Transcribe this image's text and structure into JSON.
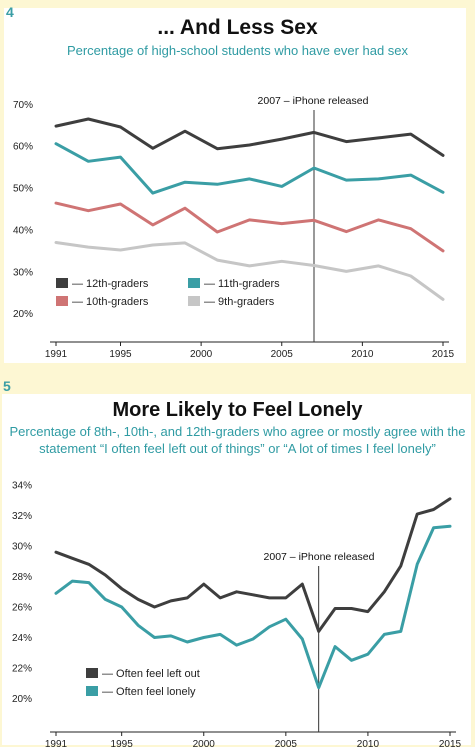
{
  "panels": [
    {
      "number": "4",
      "title": "... And Less Sex",
      "subtitle": "Percentage of high-school students who have ever had sex"
    },
    {
      "number": "5",
      "title": "More Likely to Feel Lonely",
      "subtitle": "Percentage of 8th-, 10th-, and 12th-graders who agree or mostly agree with the statement “I often feel left out of things” or “A lot of times I feel lonely”"
    }
  ],
  "colors": {
    "background": "#fdf7d3",
    "accent": "#3a9ea5",
    "dark": "#3e3e3e",
    "teal": "#3a9ea5",
    "salmon": "#cf7474",
    "gray": "#c6c6c6"
  },
  "chart_data": [
    {
      "type": "line",
      "title": "... And Less Sex",
      "subtitle": "Percentage of high-school students who have ever had sex",
      "xlim": [
        1991,
        2015
      ],
      "ylim": [
        18,
        72
      ],
      "xticks": [
        "1991",
        "1995",
        "2000",
        "2005",
        "2010",
        "2015"
      ],
      "yticks": [
        "70%",
        "60%",
        "50%",
        "40%",
        "30%",
        "20%"
      ],
      "x": [
        1991,
        1993,
        1995,
        1997,
        1999,
        2001,
        2003,
        2005,
        2007,
        2009,
        2011,
        2013,
        2015
      ],
      "annotation": {
        "x": 2007,
        "label": "2007 – iPhone released"
      },
      "legend_placement": "bottom-left",
      "series": [
        {
          "name": "12th-graders",
          "color": "#3e3e3e",
          "values": [
            64.8,
            66.5,
            64.6,
            59.5,
            63.6,
            59.4,
            60.3,
            61.7,
            63.3,
            61.1,
            62.0,
            62.9,
            57.8
          ]
        },
        {
          "name": "11th-graders",
          "color": "#3a9ea5",
          "values": [
            60.6,
            56.4,
            57.4,
            48.8,
            51.4,
            50.9,
            52.2,
            50.4,
            54.8,
            51.9,
            52.2,
            53.1,
            49.0
          ]
        },
        {
          "name": "10th-graders",
          "color": "#cf7474",
          "values": [
            46.4,
            44.6,
            46.2,
            41.2,
            45.2,
            39.5,
            42.4,
            41.5,
            42.3,
            39.6,
            42.4,
            40.3,
            35.0
          ]
        },
        {
          "name": "9th-graders",
          "color": "#c6c6c6",
          "values": [
            37.0,
            35.9,
            35.2,
            36.4,
            36.9,
            32.8,
            31.4,
            32.5,
            31.5,
            30.1,
            31.4,
            29.0,
            23.4
          ]
        }
      ]
    },
    {
      "type": "line",
      "title": "More Likely to Feel Lonely",
      "subtitle": "Percentage of 8th-, 10th-, and 12th-graders who agree or mostly agree with the statement “I often feel left out of things” or “A lot of times I feel lonely”",
      "xlim": [
        1991,
        2015
      ],
      "ylim": [
        19.5,
        34.6
      ],
      "xticks": [
        "1991",
        "1995",
        "2000",
        "2005",
        "2010",
        "2015"
      ],
      "yticks": [
        "34%",
        "32%",
        "30%",
        "28%",
        "26%",
        "24%",
        "22%",
        "20%"
      ],
      "x": [
        1991,
        1992,
        1993,
        1994,
        1995,
        1996,
        1997,
        1998,
        1999,
        2000,
        2001,
        2002,
        2003,
        2004,
        2005,
        2006,
        2007,
        2008,
        2009,
        2010,
        2011,
        2012,
        2013,
        2014,
        2015
      ],
      "annotation": {
        "x": 2007,
        "label": "2007 – iPhone released"
      },
      "legend_placement": "bottom-left",
      "series": [
        {
          "name": "Often feel left out",
          "color": "#3e3e3e",
          "values": [
            29.6,
            29.2,
            28.8,
            28.1,
            27.2,
            26.5,
            26.0,
            26.4,
            26.6,
            27.5,
            26.6,
            27.0,
            26.8,
            26.6,
            26.6,
            27.5,
            24.4,
            25.9,
            25.9,
            25.7,
            27.0,
            28.7,
            32.1,
            32.4,
            33.1
          ]
        },
        {
          "name": "Often feel lonely",
          "color": "#3a9ea5",
          "values": [
            26.9,
            27.7,
            27.6,
            26.5,
            26.0,
            24.8,
            24.0,
            24.1,
            23.7,
            24.0,
            24.2,
            23.5,
            23.9,
            24.7,
            25.2,
            23.9,
            20.7,
            23.4,
            22.5,
            22.9,
            24.2,
            24.4,
            28.8,
            31.2,
            31.3
          ]
        }
      ]
    }
  ]
}
